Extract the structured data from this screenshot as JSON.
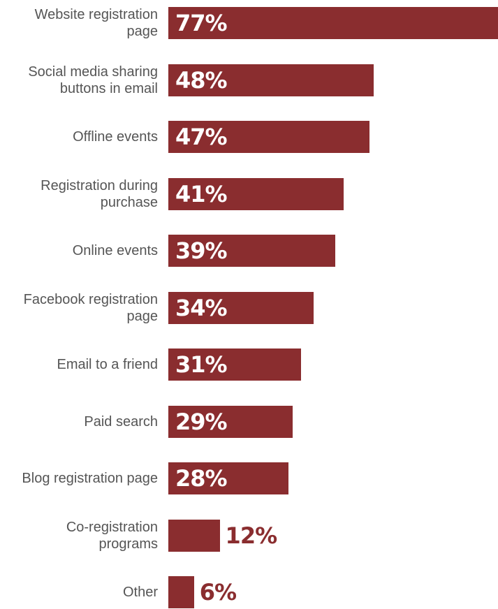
{
  "chart_data": {
    "type": "bar",
    "orientation": "horizontal",
    "categories": [
      "Website registration page",
      "Social media sharing buttons in email",
      "Offline events",
      "Registration during purchase",
      "Online events",
      "Facebook registration page",
      "Email to a friend",
      "Paid search",
      "Blog registration page",
      "Co-registration programs",
      "Other"
    ],
    "values": [
      77,
      48,
      47,
      41,
      39,
      34,
      31,
      29,
      28,
      12,
      6
    ],
    "value_labels": [
      "77%",
      "48%",
      "47%",
      "41%",
      "39%",
      "34%",
      "31%",
      "29%",
      "28%",
      "12%",
      "6%"
    ],
    "color": "#8a2d2f"
  }
}
